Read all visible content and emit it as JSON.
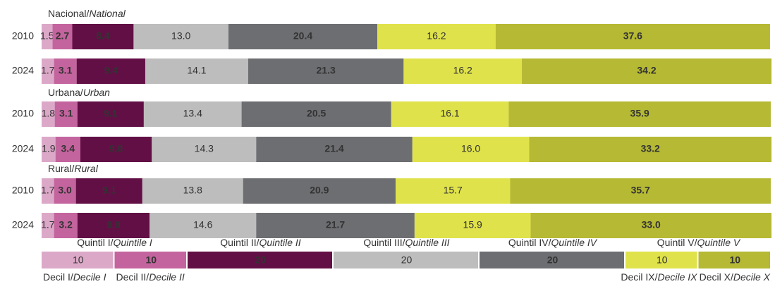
{
  "chart_data": {
    "type": "stacked-bar-horizontal",
    "xlim": [
      0,
      100
    ],
    "groups": [
      [
        "Nacional/",
        "National"
      ],
      [
        "Urbana/",
        "Urban"
      ],
      [
        "Rural/",
        "Rural"
      ]
    ],
    "categories": [
      "2010",
      "2024",
      "2010",
      "2024",
      "2010",
      "2024"
    ],
    "series": [
      {
        "name": [
          "Decil I/",
          "Decile I"
        ],
        "color": "#dca8c8",
        "label_color": "#333333",
        "values": [
          1.5,
          1.7,
          1.8,
          1.9,
          1.7,
          1.7
        ],
        "value_labels": [
          "1.5",
          "1.7",
          "1.8",
          "1.9",
          "1.7",
          "1.7"
        ]
      },
      {
        "name": [
          "Decil II/",
          "Decile II"
        ],
        "color": "#c4649e",
        "label_color": "#ffffff",
        "values": [
          2.7,
          3.1,
          3.1,
          3.4,
          3.0,
          3.2
        ],
        "value_labels": [
          "2.7",
          "3.1",
          "3.1",
          "3.4",
          "3.0",
          "3.2"
        ]
      },
      {
        "color": "#620f45",
        "label_color": "#ffffff",
        "values": [
          8.4,
          9.4,
          9.1,
          9.8,
          9.1,
          9.9
        ],
        "value_labels": [
          "8.4",
          "9.4",
          "9.1",
          "9.8",
          "9.1",
          "9.9"
        ]
      },
      {
        "color": "#bdbdbd",
        "label_color": "#333333",
        "values": [
          13.0,
          14.1,
          13.4,
          14.3,
          13.8,
          14.6
        ],
        "value_labels": [
          "13.0",
          "14.1",
          "13.4",
          "14.3",
          "13.8",
          "14.6"
        ]
      },
      {
        "color": "#6d6e71",
        "label_color": "#ffffff",
        "values": [
          20.4,
          21.3,
          20.5,
          21.4,
          20.9,
          21.7
        ],
        "value_labels": [
          "20.4",
          "21.3",
          "20.5",
          "21.4",
          "20.9",
          "21.7"
        ]
      },
      {
        "name": [
          "Decil IX/",
          "Decile IX"
        ],
        "color": "#dfe24a",
        "label_color": "#333333",
        "values": [
          16.2,
          16.2,
          16.1,
          16.0,
          15.7,
          15.9
        ],
        "value_labels": [
          "16.2",
          "16.2",
          "16.1",
          "16.0",
          "15.7",
          "15.9"
        ]
      },
      {
        "name": [
          "Decil X/",
          "Decile X"
        ],
        "color": "#b5b933",
        "label_color": "#ffffff",
        "values": [
          37.6,
          34.2,
          35.9,
          33.2,
          35.7,
          33.0
        ],
        "value_labels": [
          "37.6",
          "34.2",
          "35.9",
          "33.2",
          "35.7",
          "33.0"
        ]
      }
    ],
    "quintiles": [
      [
        "Quintil I/",
        "Quintile I"
      ],
      [
        "Quintil II/",
        "Quintile II"
      ],
      [
        "Quintil III/",
        "Quintile III"
      ],
      [
        "Quintil IV/",
        "Quintile IV"
      ],
      [
        "Quintil V/",
        "Quintile V"
      ]
    ],
    "population_shares": [
      10,
      10,
      20,
      20,
      20,
      10,
      10
    ]
  }
}
